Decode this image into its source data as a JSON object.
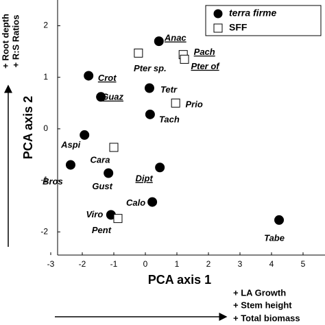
{
  "chart_data": {
    "type": "scatter",
    "xlabel": "PCA axis 1",
    "ylabel": "PCA axis 2",
    "xlim": [
      -3,
      5.5
    ],
    "ylim": [
      -2.45,
      2.5
    ],
    "xticks": [
      -3,
      -2,
      -1,
      0,
      1,
      2,
      3,
      4,
      5
    ],
    "yticks": [
      -2,
      -1,
      0,
      1,
      2
    ],
    "legend_position": "upper right",
    "series": [
      {
        "name": "terra firme",
        "color": "#000000",
        "marker": "filled-circle",
        "x": [
          0.43,
          -1.8,
          -1.41,
          0.13,
          0.15,
          -1.93,
          -2.37,
          -1.17,
          0.46,
          0.22,
          -1.09,
          4.24
        ],
        "values": [
          1.7,
          1.03,
          0.62,
          0.79,
          0.28,
          -0.12,
          -0.7,
          -0.86,
          -0.75,
          -1.42,
          -1.67,
          -1.77
        ],
        "labels": [
          "Anac",
          "Crot",
          "Guaz",
          "Tetr",
          "Tach",
          "Aspi",
          "Bros",
          "Gust",
          "Dipt",
          "Calo",
          "Viro",
          "Tabe"
        ],
        "underlined": [
          true,
          true,
          true,
          false,
          false,
          false,
          false,
          false,
          true,
          false,
          false,
          false
        ]
      },
      {
        "name": "SFF",
        "color": "#000000",
        "marker": "open-square",
        "x": [
          -0.22,
          1.2,
          1.24,
          0.96,
          -1.0,
          -0.87
        ],
        "values": [
          1.47,
          1.44,
          1.35,
          0.5,
          -0.36,
          -1.74
        ],
        "labels": [
          "Pter sp.",
          "Pach",
          "Pter of",
          "Prio",
          "Cara",
          "Pent"
        ],
        "underlined": [
          false,
          true,
          true,
          false,
          false,
          false
        ]
      }
    ],
    "y_annotation": [
      "+ Root depth",
      "+ R:S Ratios"
    ],
    "x_annotation": [
      "+ LA Growth",
      "+ Stem height",
      "+ Total biomass"
    ]
  }
}
